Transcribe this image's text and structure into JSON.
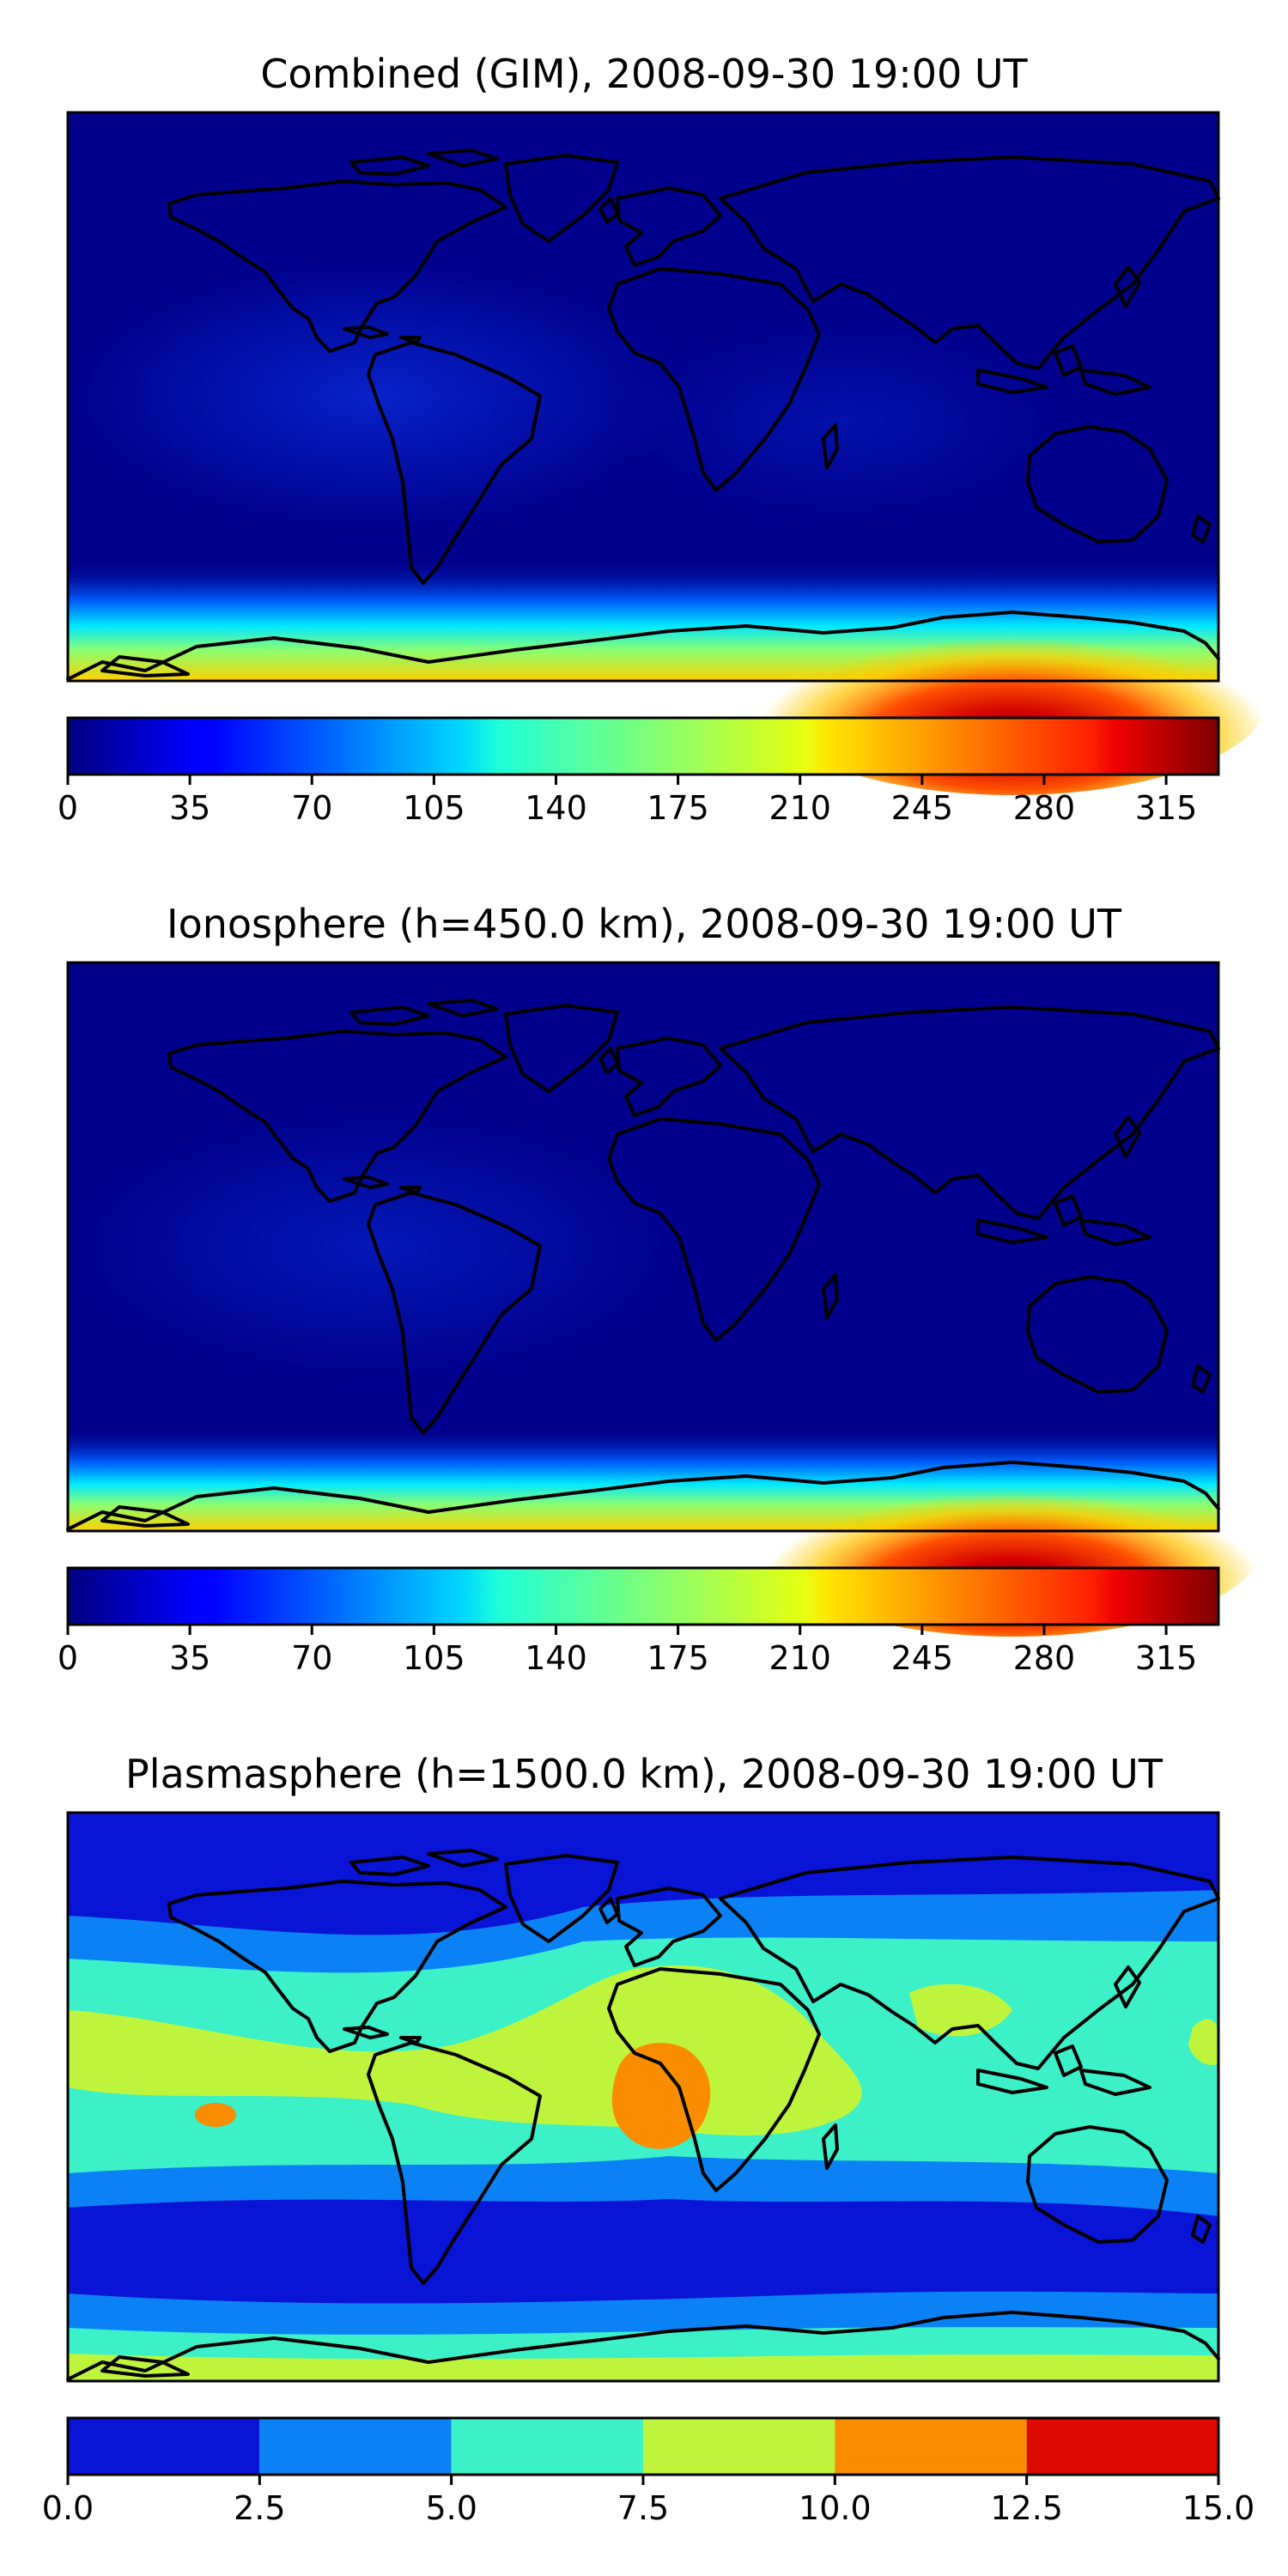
{
  "panels": [
    {
      "title": "Combined (GIM), 2008-09-30 19:00 UT",
      "colormap": "jet",
      "field": "smooth",
      "peak_value": 330,
      "colorbar": {
        "range": [
          0,
          330
        ],
        "style": "continuous",
        "ticks": [
          "0",
          "35",
          "70",
          "105",
          "140",
          "175",
          "210",
          "245",
          "280",
          "315"
        ]
      }
    },
    {
      "title": "Ionosphere  (h=450.0 km), 2008-09-30 19:00 UT",
      "colormap": "jet",
      "field": "smooth",
      "peak_value": 330,
      "colorbar": {
        "range": [
          0,
          330
        ],
        "style": "continuous",
        "ticks": [
          "0",
          "35",
          "70",
          "105",
          "140",
          "175",
          "210",
          "245",
          "280",
          "315"
        ]
      }
    },
    {
      "title": "Plasmasphere (h=1500.0 km), 2008-09-30 19:00 UT",
      "colormap": "jet",
      "field": "contour",
      "colorbar": {
        "range": [
          0,
          15
        ],
        "style": "discrete",
        "levels": [
          0,
          2.5,
          5.0,
          7.5,
          10.0,
          12.5,
          15.0
        ],
        "level_colors": [
          "#0a14d6",
          "#0a82f5",
          "#3cf0c8",
          "#bef53c",
          "#fa8c00",
          "#dc0a00"
        ],
        "ticks": [
          "0.0",
          "2.5",
          "5.0",
          "7.5",
          "10.0",
          "12.5",
          "15.0"
        ]
      }
    }
  ],
  "coastline_color": "#000000"
}
